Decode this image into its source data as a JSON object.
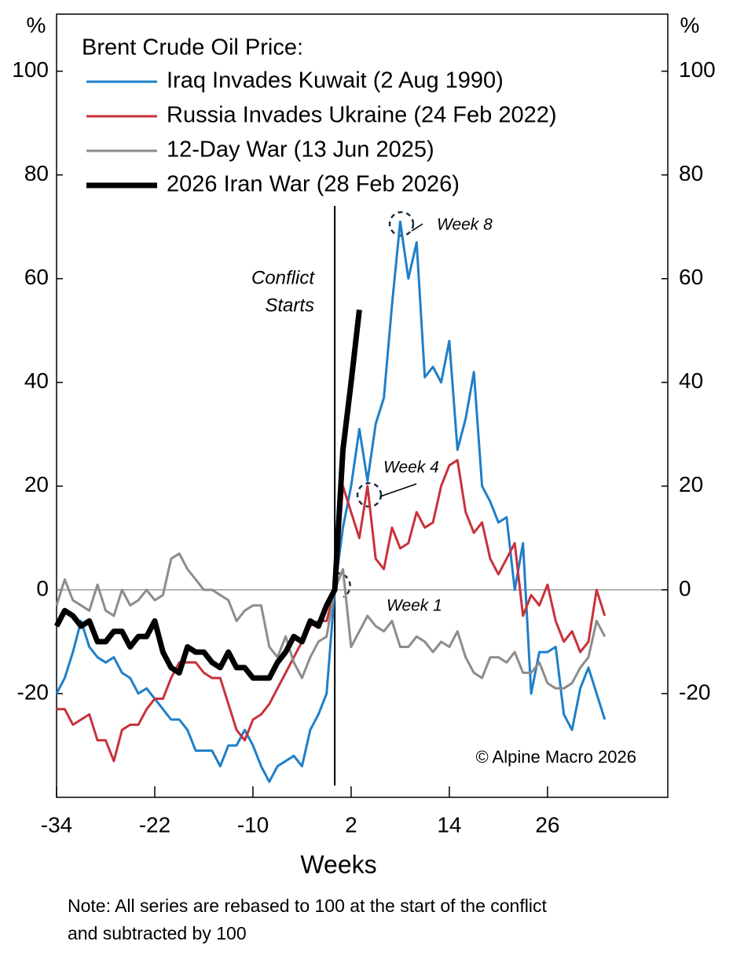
{
  "chart_data": {
    "type": "line",
    "legend_title": "Brent Crude Oil Price:",
    "x_label": "Weeks",
    "y_unit": "%",
    "y2_unit": "%",
    "note": [
      "Note: All series are rebased to 100 at the start of the conflict",
      "and subtracted by 100"
    ],
    "copyright": "© Alpine Macro 2026",
    "conflict_label": [
      "Conflict",
      "Starts"
    ],
    "conflict_x": 0,
    "week_labels": [
      "Week 8",
      "Week 4",
      "Week 1"
    ],
    "xlim": [
      -34,
      40.7
    ],
    "xticks": [
      -34,
      -22,
      -10,
      2,
      14,
      26
    ],
    "ylim": [
      -40,
      111
    ],
    "yticks": [
      -20,
      0,
      20,
      40,
      60,
      80,
      100
    ],
    "y2lim": [
      -40,
      111
    ],
    "y2ticks": [
      -20,
      0,
      20,
      40,
      60,
      80,
      100
    ],
    "x": [
      -34,
      -33,
      -32,
      -31,
      -30,
      -29,
      -28,
      -27,
      -26,
      -25,
      -24,
      -23,
      -22,
      -21,
      -20,
      -19,
      -18,
      -17,
      -16,
      -15,
      -14,
      -13,
      -12,
      -11,
      -10,
      -9,
      -8,
      -7,
      -6,
      -5,
      -4,
      -3,
      -2,
      -1,
      0,
      1,
      2,
      3,
      4,
      5,
      6,
      7,
      8,
      9,
      10,
      11,
      12,
      13,
      14,
      15,
      16,
      17,
      18,
      19,
      20,
      21,
      22,
      23,
      24,
      25,
      26,
      27,
      28,
      29,
      30,
      31,
      32,
      33
    ],
    "series": [
      {
        "name": "Iraq Invades Kuwait (2 Aug 1990)",
        "color": "#1f7fc8",
        "line_width": 3,
        "values": [
          -20,
          -17,
          -12,
          -6,
          -11,
          -13,
          -14,
          -13,
          -16,
          -17,
          -20,
          -19,
          -21,
          -23,
          -25,
          -25,
          -27,
          -31,
          -31,
          -31,
          -34,
          -30,
          -30,
          -27,
          -30,
          -34,
          -37,
          -34,
          -33,
          -32,
          -34,
          -27,
          -24,
          -20,
          0,
          12,
          20,
          31,
          21,
          32,
          37,
          55,
          71,
          60,
          67,
          41,
          43,
          40,
          48,
          27,
          33,
          42,
          20,
          17,
          13,
          14,
          0,
          9,
          -20,
          -12,
          -12,
          -11,
          -24,
          -27,
          -19,
          -15,
          -20,
          -25
        ]
      },
      {
        "name": "Russia Invades Ukraine (24 Feb 2022)",
        "color": "#c8323c",
        "line_width": 3,
        "values": [
          -23,
          -23,
          -26,
          -25,
          -24,
          -29,
          -29,
          -33,
          -27,
          -26,
          -26,
          -23,
          -21,
          -21,
          -17,
          -14,
          -14,
          -14,
          -16,
          -17,
          -17,
          -22,
          -27,
          -29,
          -25,
          -24,
          -22,
          -19,
          -16,
          -13,
          -10,
          -7,
          -6,
          -6,
          0,
          20,
          15,
          10,
          20,
          6,
          4,
          12,
          8,
          9,
          15,
          12,
          13,
          20,
          24,
          25,
          15,
          11,
          13,
          6,
          3,
          6,
          9,
          -5,
          -1,
          -3,
          1,
          -6,
          -10,
          -8,
          -12,
          -10,
          0,
          -5
        ]
      },
      {
        "name": "12-Day War (13 Jun 2025)",
        "color": "#8c8c8c",
        "line_width": 3,
        "values": [
          -3,
          2,
          -2,
          -3,
          -4,
          1,
          -4,
          -5,
          0,
          -3,
          -2,
          0,
          -2,
          -1,
          6,
          7,
          4,
          2,
          0,
          0,
          -1,
          -2,
          -6,
          -4,
          -3,
          -3,
          -11,
          -13,
          -9,
          -14,
          -17,
          -13,
          -10,
          -9,
          0,
          4,
          -11,
          -8,
          -5,
          -7,
          -8,
          -6,
          -11,
          -11,
          -9,
          -10,
          -12,
          -10,
          -11,
          -8,
          -13,
          -16,
          -17,
          -13,
          -13,
          -14,
          -12,
          -16,
          -16,
          -14,
          -18,
          -19,
          -19,
          -18,
          -15,
          -13,
          -6,
          -9
        ]
      },
      {
        "name": "2026 Iran War (28 Feb 2026)",
        "color": "#000000",
        "line_width": 7,
        "values": [
          -7,
          -4,
          -5,
          -7,
          -6,
          -10,
          -10,
          -8,
          -8,
          -11,
          -9,
          -9,
          -6,
          -12,
          -15,
          -16,
          -11,
          -12,
          -12,
          -14,
          -15,
          -12,
          -15,
          -15,
          -17,
          -17,
          -17,
          -14,
          -12,
          -9,
          -10,
          -6,
          -7,
          -3,
          0,
          27,
          40,
          54,
          null,
          null,
          null,
          null,
          null,
          null,
          null,
          null,
          null,
          null,
          null,
          null,
          null,
          null,
          null,
          null,
          null,
          null,
          null,
          null,
          null,
          null,
          null,
          null,
          null,
          null,
          null,
          null,
          null,
          null
        ]
      }
    ]
  }
}
